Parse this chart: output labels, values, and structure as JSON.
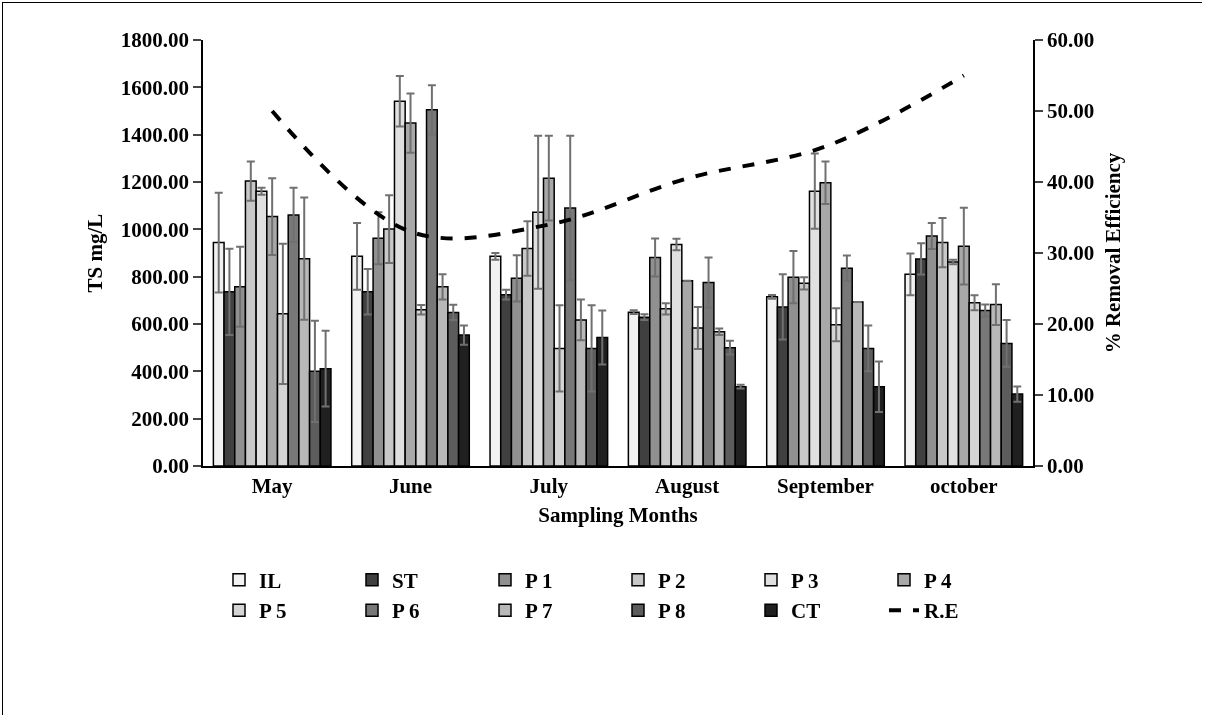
{
  "chart_data": {
    "type": "bar",
    "xlabel": "Sampling Months",
    "ylabel": "TS mg/L",
    "y2label": "% Removal Efficiency",
    "categories": [
      "May",
      "June",
      "July",
      "August",
      "September",
      "october"
    ],
    "ylim": [
      0,
      1800
    ],
    "yticks": [
      {
        "value": 0,
        "label": "0.00"
      },
      {
        "value": 200,
        "label": "200.00"
      },
      {
        "value": 400,
        "label": "400.00"
      },
      {
        "value": 600,
        "label": "600.00"
      },
      {
        "value": 800,
        "label": "800.00"
      },
      {
        "value": 1000,
        "label": "1000.00"
      },
      {
        "value": 1200,
        "label": "1200.00"
      },
      {
        "value": 1400,
        "label": "1400.00"
      },
      {
        "value": 1600,
        "label": "1600.00"
      },
      {
        "value": 1800,
        "label": "1800.00"
      }
    ],
    "y2lim": [
      0,
      60
    ],
    "y2ticks": [
      {
        "value": 0,
        "label": "0.00"
      },
      {
        "value": 10,
        "label": "10.00"
      },
      {
        "value": 20,
        "label": "20.00"
      },
      {
        "value": 30,
        "label": "30.00"
      },
      {
        "value": 40,
        "label": "40.00"
      },
      {
        "value": 50,
        "label": "50.00"
      },
      {
        "value": 60,
        "label": "60.00"
      }
    ],
    "grid": false,
    "legend": "bottom",
    "series": [
      {
        "name": "IL",
        "color": "#f2f2f2",
        "values": [
          944,
          886,
          886,
          650,
          715,
          810
        ],
        "errors": [
          211,
          141,
          14,
          8,
          8,
          88
        ]
      },
      {
        "name": "ST",
        "color": "#404040",
        "values": [
          736,
          736,
          724,
          629,
          672,
          875
        ],
        "errors": [
          182,
          96,
          21,
          12,
          138,
          66
        ]
      },
      {
        "name": "P 1",
        "color": "#909090",
        "values": [
          757,
          962,
          793,
          881,
          798,
          972
        ],
        "errors": [
          169,
          110,
          98,
          80,
          110,
          55
        ]
      },
      {
        "name": "P 2",
        "color": "#c8c8c8",
        "values": [
          1204,
          1001,
          919,
          664,
          772,
          944
        ],
        "errors": [
          83,
          143,
          115,
          24,
          26,
          104
        ]
      },
      {
        "name": "P 3",
        "color": "#e0e0e0",
        "values": [
          1161,
          1541,
          1072,
          936,
          1161,
          862
        ],
        "errors": [
          15,
          107,
          323,
          24,
          159,
          10
        ]
      },
      {
        "name": "P 4",
        "color": "#a8a8a8",
        "values": [
          1054,
          1449,
          1216,
          783,
          1197,
          929
        ],
        "errors": [
          162,
          125,
          179,
          null,
          90,
          162
        ]
      },
      {
        "name": "P 5",
        "color": "#d4d4d4",
        "values": [
          643,
          660,
          497,
          583,
          597,
          690
        ],
        "errors": [
          296,
          20,
          182,
          89,
          70,
          32
        ]
      },
      {
        "name": "P 6",
        "color": "#787878",
        "values": [
          1061,
          1505,
          1090,
          775,
          836,
          657
        ],
        "errors": [
          115,
          104,
          305,
          106,
          53,
          25
        ]
      },
      {
        "name": "P 7",
        "color": "#b8b8b8",
        "values": [
          876,
          757,
          617,
          567,
          693,
          682
        ],
        "errors": [
          258,
          53,
          86,
          14,
          null,
          86
        ]
      },
      {
        "name": "P 8",
        "color": "#5c5c5c",
        "values": [
          400,
          649,
          497,
          500,
          497,
          518
        ],
        "errors": [
          214,
          32,
          182,
          29,
          97,
          99
        ]
      },
      {
        "name": "CT",
        "color": "#202020",
        "values": [
          411,
          553,
          543,
          335,
          335,
          304
        ],
        "errors": [
          160,
          41,
          114,
          8,
          107,
          32
        ]
      },
      {
        "name": "R.E",
        "type": "line",
        "axis": "y2",
        "color": "#000000",
        "line_style": "dashed",
        "marker": "none",
        "values": [
          50,
          33,
          34,
          40.5,
          45,
          55
        ]
      }
    ]
  }
}
